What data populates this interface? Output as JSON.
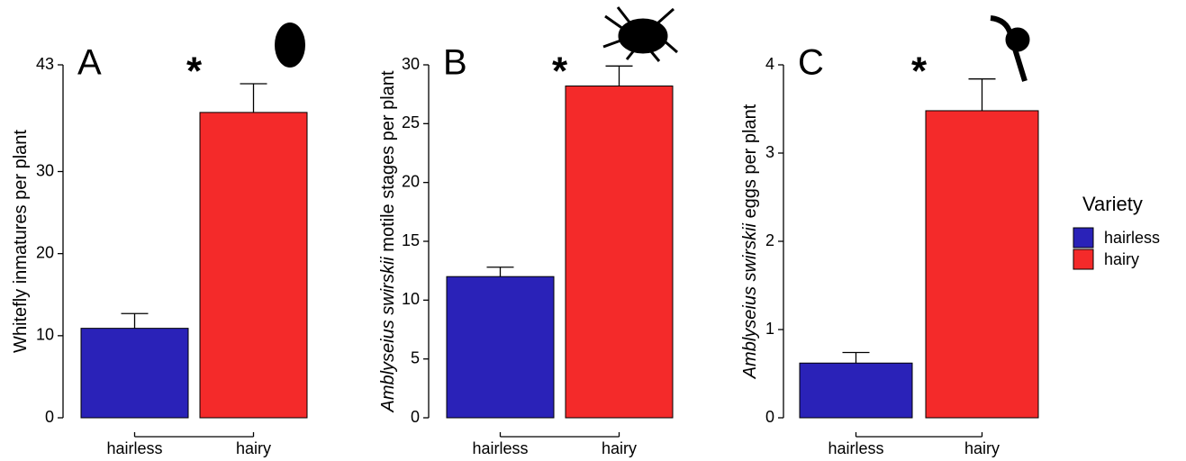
{
  "chart_data": [
    {
      "type": "bar",
      "panel": "A",
      "annotation": "*",
      "ylabel": [
        {
          "text": "Whitefly inmatures per plant"
        }
      ],
      "categories": [
        "hairless",
        "hairy"
      ],
      "values": [
        10.9,
        37.2
      ],
      "errors": [
        1.8,
        3.5
      ],
      "colors": [
        "#2a22b8",
        "#f42a2a"
      ],
      "ylim": [
        0,
        43
      ],
      "yticks": [
        0,
        10,
        20,
        30,
        43
      ]
    },
    {
      "type": "bar",
      "panel": "B",
      "annotation": "*",
      "ylabel": [
        {
          "text": "Amblyseius swirskii",
          "italic": true
        },
        {
          "text": " motile stages per plant"
        }
      ],
      "categories": [
        "hairless",
        "hairy"
      ],
      "values": [
        12.0,
        28.2
      ],
      "errors": [
        0.8,
        1.7
      ],
      "colors": [
        "#2a22b8",
        "#f42a2a"
      ],
      "ylim": [
        0,
        30
      ],
      "yticks": [
        0,
        5,
        10,
        15,
        20,
        25,
        30
      ]
    },
    {
      "type": "bar",
      "panel": "C",
      "annotation": "*",
      "ylabel": [
        {
          "text": "Amblyseius swirskii",
          "italic": true
        },
        {
          "text": " eggs per plant"
        }
      ],
      "categories": [
        "hairless",
        "hairy"
      ],
      "values": [
        0.62,
        3.48
      ],
      "errors": [
        0.12,
        0.36
      ],
      "colors": [
        "#2a22b8",
        "#f42a2a"
      ],
      "ylim": [
        0,
        4
      ],
      "yticks": [
        0,
        1,
        2,
        3,
        4
      ]
    }
  ],
  "legend": {
    "title": "Variety",
    "entries": [
      {
        "name": "hairless",
        "color": "#2a22b8"
      },
      {
        "name": "hairy",
        "color": "#f42a2a"
      }
    ]
  }
}
